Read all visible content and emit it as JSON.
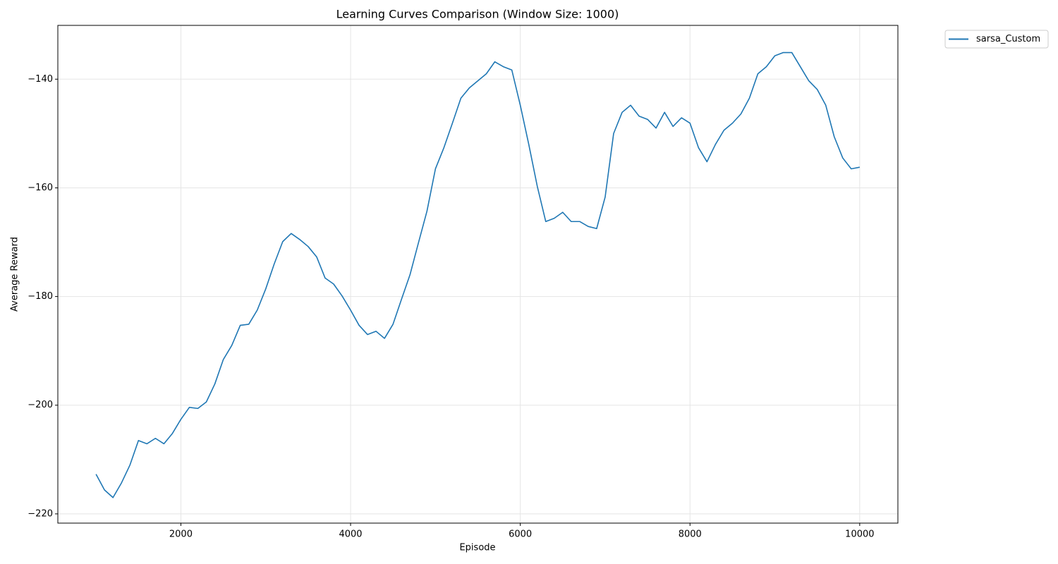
{
  "chart_data": {
    "type": "line",
    "title": "Learning Curves Comparison (Window Size: 1000)",
    "x_label": "Episode",
    "y_label": "Average Reward",
    "x": [
      1000,
      1100,
      1200,
      1300,
      1400,
      1500,
      1600,
      1700,
      1800,
      1900,
      2000,
      2100,
      2200,
      2300,
      2400,
      2500,
      2600,
      2700,
      2800,
      2900,
      3000,
      3100,
      3200,
      3300,
      3400,
      3500,
      3600,
      3700,
      3800,
      3900,
      4000,
      4100,
      4200,
      4300,
      4400,
      4500,
      4600,
      4700,
      4800,
      4900,
      5000,
      5100,
      5200,
      5300,
      5400,
      5500,
      5600,
      5700,
      5800,
      5900,
      6000,
      6100,
      6200,
      6300,
      6400,
      6500,
      6600,
      6700,
      6800,
      6900,
      7000,
      7100,
      7200,
      7300,
      7400,
      7500,
      7600,
      7700,
      7800,
      7900,
      8000,
      8100,
      8200,
      8300,
      8400,
      8500,
      8600,
      8700,
      8800,
      8900,
      9000,
      9100,
      9200,
      9300,
      9400,
      9500,
      9600,
      9700,
      9800,
      9900,
      10000
    ],
    "series": [
      {
        "name": "sarsa_Custom",
        "color": "#1f77b4",
        "values": [
          -212.7,
          -215.6,
          -217.0,
          -214.3,
          -211.0,
          -206.5,
          -207.1,
          -206.1,
          -207.1,
          -205.2,
          -202.6,
          -200.4,
          -200.6,
          -199.4,
          -196.1,
          -191.6,
          -189.0,
          -185.3,
          -185.1,
          -182.5,
          -178.6,
          -174.0,
          -169.9,
          -168.4,
          -169.5,
          -170.8,
          -172.7,
          -176.6,
          -177.7,
          -179.9,
          -182.5,
          -185.3,
          -187.0,
          -186.4,
          -187.7,
          -185.1,
          -180.5,
          -176.0,
          -170.1,
          -164.3,
          -156.5,
          -152.6,
          -148.1,
          -143.5,
          -141.6,
          -140.3,
          -139.0,
          -136.8,
          -137.7,
          -138.3,
          -144.8,
          -152.0,
          -159.7,
          -166.2,
          -165.6,
          -164.5,
          -166.2,
          -166.2,
          -167.1,
          -167.5,
          -161.7,
          -150.0,
          -146.1,
          -144.8,
          -146.8,
          -147.4,
          -149.0,
          -146.1,
          -148.7,
          -147.1,
          -148.1,
          -152.6,
          -155.2,
          -152.0,
          -149.4,
          -148.1,
          -146.4,
          -143.5,
          -139.0,
          -137.7,
          -135.7,
          -135.1,
          -135.1,
          -137.7,
          -140.3,
          -141.9,
          -144.8,
          -150.6,
          -154.5,
          -156.5,
          -156.2
        ]
      }
    ],
    "xlim": [
      550,
      10450
    ],
    "ylim": [
      -221.7,
      -130.1
    ],
    "xticks": [
      2000,
      4000,
      6000,
      8000,
      10000
    ],
    "yticks": [
      {
        "value": -220,
        "label": "−220"
      },
      {
        "value": -200,
        "label": "−200"
      },
      {
        "value": -180,
        "label": "−180"
      },
      {
        "value": -160,
        "label": "−160"
      },
      {
        "value": -140,
        "label": "−140"
      }
    ],
    "grid": true,
    "legend": "outside upper right"
  }
}
